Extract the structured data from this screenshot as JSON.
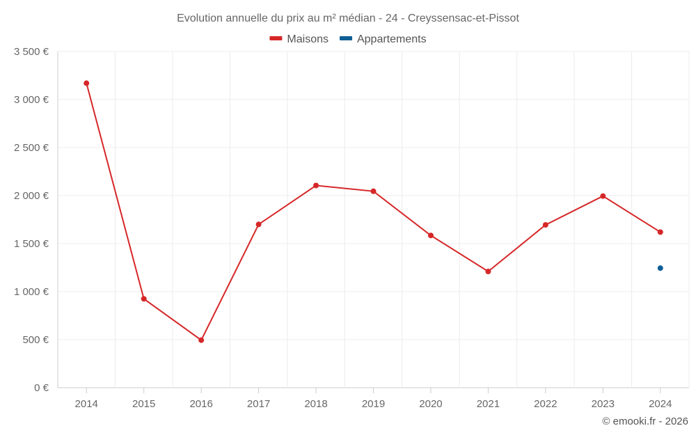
{
  "chart_data": {
    "type": "line",
    "title": "Evolution annuelle du prix au m² médian - 24 - Creyssensac-et-Pissot",
    "categories": [
      "2014",
      "2015",
      "2016",
      "2017",
      "2018",
      "2019",
      "2020",
      "2021",
      "2022",
      "2023",
      "2024"
    ],
    "series": [
      {
        "name": "Maisons",
        "color": "#d62728",
        "values": [
          3170,
          925,
          495,
          1700,
          2105,
          2045,
          1585,
          1210,
          1695,
          1995,
          1620
        ]
      },
      {
        "name": "Appartements",
        "color": "#0f5f96",
        "values": [
          null,
          null,
          null,
          null,
          null,
          null,
          null,
          null,
          null,
          null,
          1245
        ]
      }
    ],
    "ylim": [
      0,
      3500
    ],
    "yticks": [
      0,
      500,
      1000,
      1500,
      2000,
      2500,
      3000,
      3500
    ],
    "ytick_labels": [
      "0 €",
      "500 €",
      "1 000 €",
      "1 500 €",
      "2 000 €",
      "2 500 €",
      "3 000 €",
      "3 500 €"
    ],
    "xlabel": "",
    "ylabel": "",
    "grid": true,
    "legend_position": "top-center",
    "credit": "© emooki.fr - 2026"
  }
}
